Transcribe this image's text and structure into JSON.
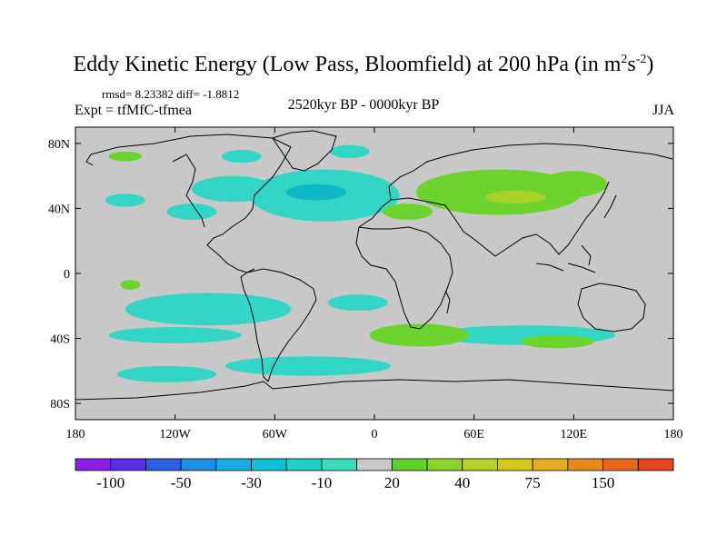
{
  "title": {
    "main": "Eddy Kinetic Energy (Low Pass, Bloomfield) at 200 hPa (in m",
    "sup1": "2",
    "mid": "s",
    "sup2": "-2",
    "end": ")"
  },
  "stats": "rmsd= 8.23382 diff= -1.8812",
  "experiment": "Expt = tfMfC-tfmea",
  "period": "2520kyr BP - 0000kyr BP",
  "season": "JJA",
  "colors": {
    "background": "#c8c8c8",
    "cyan": "#33d6c4",
    "teal": "#11b8c8",
    "green": "#6cd42c",
    "yellowgreen": "#a8d22a"
  },
  "chart_data": {
    "type": "heatmap",
    "projection": "cylindrical-equidistant",
    "xlim": [
      -180,
      180
    ],
    "ylim": [
      -90,
      90
    ],
    "x_ticks": [
      {
        "value": -180,
        "label": "180"
      },
      {
        "value": -120,
        "label": "120W"
      },
      {
        "value": -60,
        "label": "60W"
      },
      {
        "value": 0,
        "label": "0"
      },
      {
        "value": 60,
        "label": "60E"
      },
      {
        "value": 120,
        "label": "120E"
      },
      {
        "value": 180,
        "label": "180"
      }
    ],
    "y_ticks": [
      {
        "value": 80,
        "label": "80N"
      },
      {
        "value": 40,
        "label": "40N"
      },
      {
        "value": 0,
        "label": "0"
      },
      {
        "value": -40,
        "label": "40S"
      },
      {
        "value": -80,
        "label": "80S"
      }
    ],
    "colorbar": {
      "colors": [
        "#8a1ee6",
        "#5a2ee6",
        "#2d5ee6",
        "#1e8ee6",
        "#14aee0",
        "#10c0d6",
        "#22d0c8",
        "#38dcb8",
        "#c8c8c8",
        "#5ed228",
        "#8cd228",
        "#b8d228",
        "#d6c81e",
        "#e6ae1e",
        "#e68a1e",
        "#e6661e",
        "#e6421e"
      ],
      "labels": [
        {
          "boundary": 1,
          "text": "-100"
        },
        {
          "boundary": 3,
          "text": "-50"
        },
        {
          "boundary": 5,
          "text": "-30"
        },
        {
          "boundary": 7,
          "text": "-10"
        },
        {
          "boundary": 9,
          "text": "20"
        },
        {
          "boundary": 11,
          "text": "40"
        },
        {
          "boundary": 13,
          "text": "75"
        },
        {
          "boundary": 15,
          "text": "150"
        }
      ]
    },
    "regions": [
      {
        "name": "north-atlantic-negative",
        "level": "cyan",
        "center": [
          -30,
          48
        ],
        "radius": [
          45,
          16
        ]
      },
      {
        "name": "north-atlantic-core",
        "level": "teal",
        "center": [
          -35,
          50
        ],
        "radius": [
          18,
          5
        ]
      },
      {
        "name": "north-america-negative",
        "level": "cyan",
        "center": [
          -85,
          52
        ],
        "radius": [
          25,
          8
        ]
      },
      {
        "name": "north-pacific-negative",
        "level": "cyan",
        "center": [
          -150,
          45
        ],
        "radius": [
          12,
          4
        ]
      },
      {
        "name": "north-pacific-east-negative",
        "level": "cyan",
        "center": [
          -110,
          38
        ],
        "radius": [
          15,
          5
        ]
      },
      {
        "name": "arctic-canada-negative",
        "level": "cyan",
        "center": [
          -80,
          72
        ],
        "radius": [
          12,
          4
        ]
      },
      {
        "name": "arctic-greenland-negative",
        "level": "cyan",
        "center": [
          -15,
          75
        ],
        "radius": [
          12,
          4
        ]
      },
      {
        "name": "asia-positive",
        "level": "green",
        "center": [
          75,
          50
        ],
        "radius": [
          50,
          14
        ]
      },
      {
        "name": "asia-positive-core",
        "level": "yellowgreen",
        "center": [
          85,
          47
        ],
        "radius": [
          18,
          4
        ]
      },
      {
        "name": "north-asia-positive",
        "level": "green",
        "center": [
          120,
          55
        ],
        "radius": [
          20,
          8
        ]
      },
      {
        "name": "mediterranean-positive",
        "level": "green",
        "center": [
          20,
          38
        ],
        "radius": [
          15,
          5
        ]
      },
      {
        "name": "arctic-alaska-positive",
        "level": "green",
        "center": [
          -150,
          72
        ],
        "radius": [
          10,
          3
        ]
      },
      {
        "name": "east-pacific-positive",
        "level": "green",
        "center": [
          -147,
          -7
        ],
        "radius": [
          6,
          3
        ]
      },
      {
        "name": "south-pacific-negative",
        "level": "cyan",
        "center": [
          -100,
          -22
        ],
        "radius": [
          50,
          10
        ]
      },
      {
        "name": "south-pacific-lower-negative",
        "level": "cyan",
        "center": [
          -120,
          -38
        ],
        "radius": [
          40,
          5
        ]
      },
      {
        "name": "south-atlantic-negative",
        "level": "cyan",
        "center": [
          -10,
          -18
        ],
        "radius": [
          18,
          5
        ]
      },
      {
        "name": "indian-ocean-negative",
        "level": "cyan",
        "center": [
          90,
          -38
        ],
        "radius": [
          55,
          6
        ]
      },
      {
        "name": "indian-ocean-positive",
        "level": "green",
        "center": [
          27,
          -38
        ],
        "radius": [
          30,
          7
        ]
      },
      {
        "name": "australia-west-positive",
        "level": "green",
        "center": [
          110,
          -42
        ],
        "radius": [
          22,
          4
        ]
      },
      {
        "name": "southern-ocean-negative",
        "level": "cyan",
        "center": [
          -40,
          -57
        ],
        "radius": [
          50,
          6
        ]
      },
      {
        "name": "antarctic-pacific-negative",
        "level": "cyan",
        "center": [
          -125,
          -62
        ],
        "radius": [
          30,
          5
        ]
      }
    ]
  }
}
